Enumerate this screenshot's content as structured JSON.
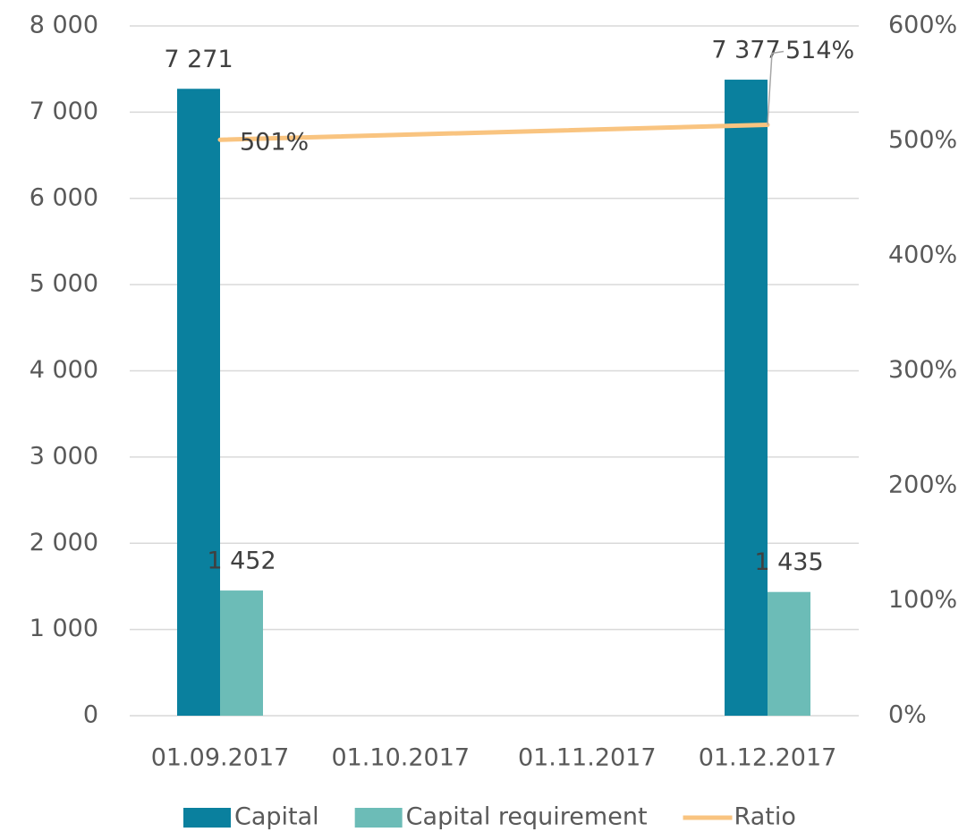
{
  "chart_data": {
    "type": "bar",
    "x": [
      "01.09.2017",
      "01.12.2017"
    ],
    "xticks": [
      "01.09.2017",
      "01.10.2017",
      "01.11.2017",
      "01.12.2017"
    ],
    "series": [
      {
        "name": "Capital",
        "color": "#0a809e",
        "values": [
          7271,
          7377
        ],
        "value_labels": [
          "7 271",
          "7 377"
        ]
      },
      {
        "name": "Capital requirement",
        "color": "#6cbcb7",
        "values": [
          1452,
          1435
        ],
        "value_labels": [
          "1 452",
          "1 435"
        ]
      },
      {
        "name": "Ratio",
        "type": "line",
        "axis": "y2",
        "color": "#f9c480",
        "values": [
          501,
          514
        ],
        "value_labels": [
          "501%",
          "514%"
        ]
      }
    ],
    "ylim": [
      0,
      8000
    ],
    "yticks": [
      0,
      {
        "value": 1000,
        "label": "1 000"
      },
      {
        "value": 2000,
        "label": "2 000"
      },
      {
        "value": 3000,
        "label": "3 000"
      },
      {
        "value": 4000,
        "label": "4 000"
      },
      {
        "value": 5000,
        "label": "5 000"
      },
      {
        "value": 6000,
        "label": "6 000"
      },
      {
        "value": 7000,
        "label": "7 000"
      },
      {
        "value": 8000,
        "label": "8 000"
      }
    ],
    "y2lim": [
      0,
      600
    ],
    "y2ticks": [
      {
        "value": 0,
        "label": "0%"
      },
      {
        "value": 100,
        "label": "100%"
      },
      {
        "value": 200,
        "label": "200%"
      },
      {
        "value": 300,
        "label": "300%"
      },
      {
        "value": 400,
        "label": "400%"
      },
      {
        "value": 500,
        "label": "500%"
      },
      {
        "value": 600,
        "label": "600%"
      }
    ],
    "grid": true,
    "legend": "bottom"
  }
}
